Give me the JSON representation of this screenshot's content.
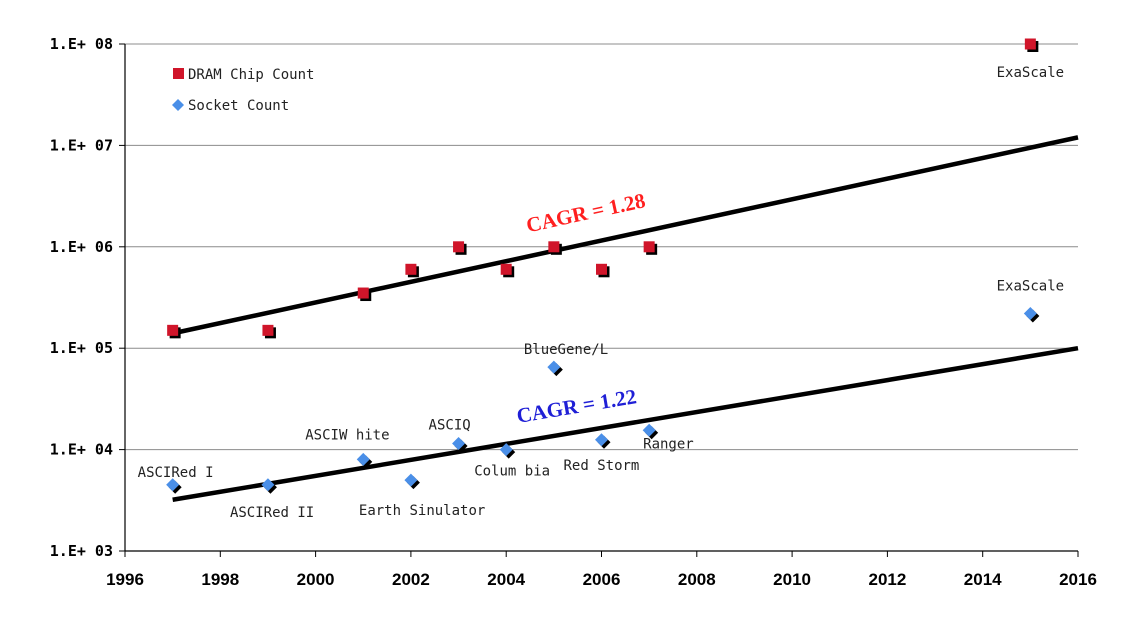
{
  "colors": {
    "dram": "#d0152a",
    "socket": "#4a8fe8",
    "cagr_dram": "#ff1f1f",
    "cagr_socket": "#1f1fd6",
    "grid": "#8c8c8c",
    "trend": "#000000"
  },
  "chart_data": {
    "type": "scatter",
    "x_scale": "linear",
    "y_scale": "log",
    "xlim": [
      1996,
      2016
    ],
    "ylim": [
      1000,
      100000000
    ],
    "x_ticks": [
      "1996",
      "1998",
      "2000",
      "2002",
      "2004",
      "2006",
      "2008",
      "2010",
      "2012",
      "2014",
      "2016"
    ],
    "y_ticks": [
      {
        "label": "1.E+ 08",
        "value": 100000000
      },
      {
        "label": "1.E+ 07",
        "value": 10000000
      },
      {
        "label": "1.E+ 06",
        "value": 1000000
      },
      {
        "label": "1.E+ 05",
        "value": 100000
      },
      {
        "label": "1.E+ 04",
        "value": 10000
      },
      {
        "label": "1.E+ 03",
        "value": 1000
      }
    ],
    "grid": "horizontal",
    "legend_position": "top-left",
    "series": [
      {
        "name": "DRAM Chip Count",
        "marker": "square",
        "points": [
          {
            "x": 1997,
            "y": 150000,
            "label": ""
          },
          {
            "x": 1999,
            "y": 150000,
            "label": ""
          },
          {
            "x": 2001,
            "y": 350000,
            "label": ""
          },
          {
            "x": 2002,
            "y": 600000,
            "label": ""
          },
          {
            "x": 2003,
            "y": 1000000,
            "label": ""
          },
          {
            "x": 2004,
            "y": 600000,
            "label": ""
          },
          {
            "x": 2005,
            "y": 1000000,
            "label": ""
          },
          {
            "x": 2006,
            "y": 600000,
            "label": ""
          },
          {
            "x": 2007,
            "y": 1000000,
            "label": ""
          },
          {
            "x": 2015,
            "y": 100000000,
            "label": "ExaScale"
          }
        ]
      },
      {
        "name": "Socket Count",
        "marker": "diamond",
        "points": [
          {
            "x": 1997,
            "y": 4500,
            "label": "ASCIRed I"
          },
          {
            "x": 1999,
            "y": 4500,
            "label": "ASCIRed II"
          },
          {
            "x": 2001,
            "y": 8000,
            "label": "ASCIW hite"
          },
          {
            "x": 2002,
            "y": 5000,
            "label": "Earth Sinulator"
          },
          {
            "x": 2003,
            "y": 11500,
            "label": "ASCIQ"
          },
          {
            "x": 2004,
            "y": 10000,
            "label": "Colum bia"
          },
          {
            "x": 2005,
            "y": 65000,
            "label": "BlueGene/L"
          },
          {
            "x": 2006,
            "y": 12500,
            "label": "Red Storm"
          },
          {
            "x": 2007,
            "y": 15500,
            "label": "Ranger"
          },
          {
            "x": 2015,
            "y": 220000,
            "label": "ExaScale"
          }
        ]
      }
    ],
    "trendlines": [
      {
        "series": "DRAM Chip Count",
        "label": "CAGR = 1.28",
        "from": {
          "x": 1997,
          "y": 140000
        },
        "to": {
          "x": 2016,
          "y": 12000000
        }
      },
      {
        "series": "Socket Count",
        "label": "CAGR = 1.22",
        "from": {
          "x": 1997,
          "y": 3200
        },
        "to": {
          "x": 2016,
          "y": 100000
        }
      }
    ]
  }
}
